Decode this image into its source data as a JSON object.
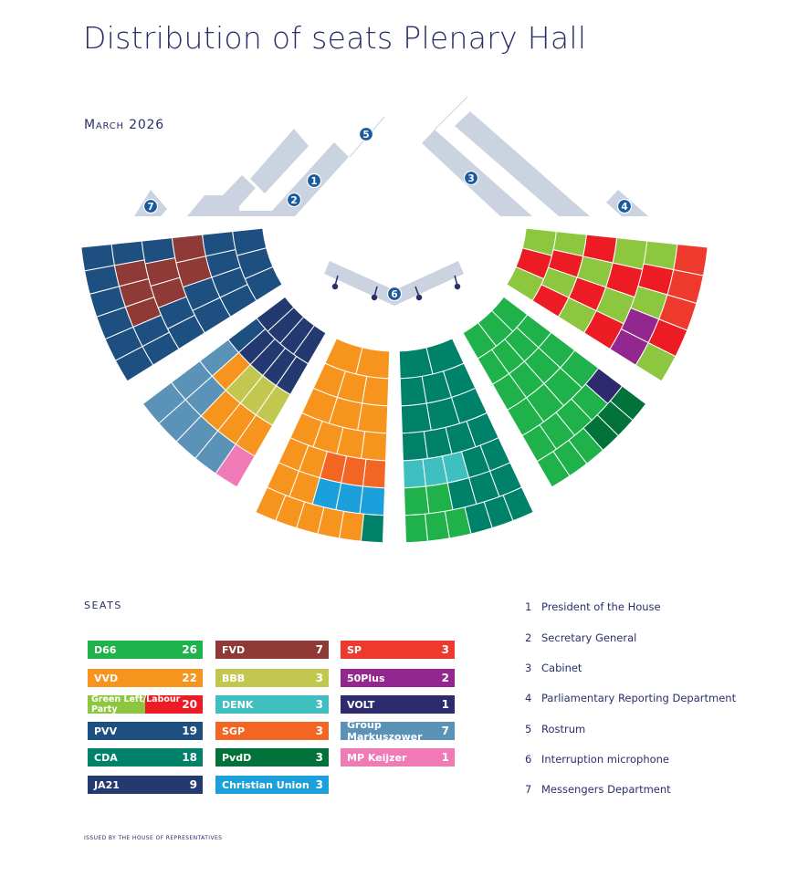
{
  "title": "Distribution of seats Plenary Hall",
  "date": "March 2026",
  "seats_heading": "SEATS",
  "footer": "ISSUED BY THE HOUSE OF REPRESENTATIVES",
  "parties": {
    "D66": {
      "name": "D66",
      "seats": "26",
      "color": "#1fb24a"
    },
    "VVD": {
      "name": "VVD",
      "seats": "22",
      "color": "#f7941d"
    },
    "GLPvdA": {
      "name": "Green Left/Labour Party",
      "seats": "20",
      "color": "#8dc63f",
      "color2": "#ed1c24"
    },
    "PVV": {
      "name": "PVV",
      "seats": "19",
      "color": "#1d4f80"
    },
    "CDA": {
      "name": "CDA",
      "seats": "18",
      "color": "#00826a"
    },
    "JA21": {
      "name": "JA21",
      "seats": "9",
      "color": "#233a70"
    },
    "FVD": {
      "name": "FVD",
      "seats": "7",
      "color": "#8f3a36"
    },
    "BBB": {
      "name": "BBB",
      "seats": "3",
      "color": "#c2c84f"
    },
    "DENK": {
      "name": "DENK",
      "seats": "3",
      "color": "#40bfc1"
    },
    "SGP": {
      "name": "SGP",
      "seats": "3",
      "color": "#f26522"
    },
    "PvdD": {
      "name": "PvdD",
      "seats": "3",
      "color": "#00723a"
    },
    "CU": {
      "name": "Christian Union",
      "seats": "3",
      "color": "#1ba0db"
    },
    "SP": {
      "name": "SP",
      "seats": "3",
      "color": "#ee3a2d"
    },
    "50PLUS": {
      "name": "50Plus",
      "seats": "2",
      "color": "#92278f"
    },
    "VOLT": {
      "name": "VOLT",
      "seats": "1",
      "color": "#2e2a6e"
    },
    "GM": {
      "name": "Group Markuszower",
      "seats": "7",
      "color": "#5b93b8"
    },
    "KEIJZER": {
      "name": "MP Keijzer",
      "seats": "1",
      "color": "#f07ab6"
    }
  },
  "key": [
    {
      "num": "1",
      "label": "President of the House"
    },
    {
      "num": "2",
      "label": "Secretary General"
    },
    {
      "num": "3",
      "label": "Cabinet"
    },
    {
      "num": "4",
      "label": "Parliamentary Reporting Department"
    },
    {
      "num": "5",
      "label": "Rostrum"
    },
    {
      "num": "6",
      "label": "Interruption microphone"
    },
    {
      "num": "7",
      "label": "Messengers Department"
    }
  ],
  "colors": {
    "furniture": "#ccd3e0",
    "badge": "#1a5a9e",
    "text": "#2a2f6b"
  }
}
